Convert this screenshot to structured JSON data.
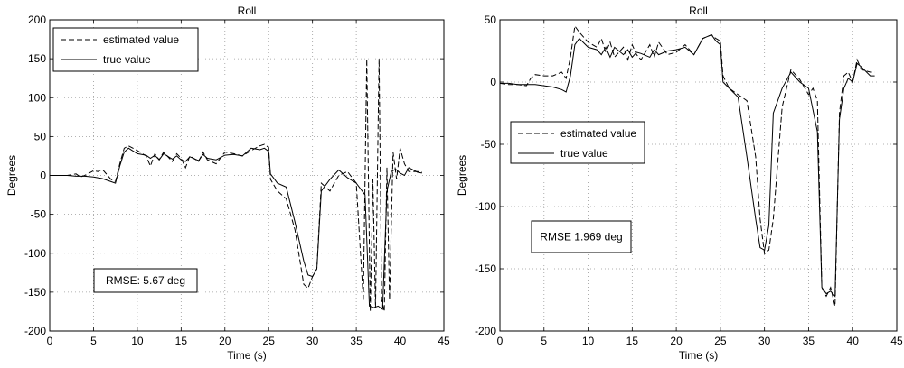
{
  "chart_data": [
    {
      "type": "line",
      "title": "Roll",
      "xlabel": "Time (s)",
      "ylabel": "Degrees",
      "xlim": [
        0,
        45
      ],
      "ylim": [
        -200,
        200
      ],
      "xticks": [
        0,
        5,
        10,
        15,
        20,
        25,
        30,
        35,
        40,
        45
      ],
      "yticks": [
        -200,
        -150,
        -100,
        -50,
        0,
        50,
        100,
        150,
        200
      ],
      "grid": true,
      "legend_position": "top-left",
      "annotation": "RMSE: 5.67 deg",
      "series": [
        {
          "name": "estimated value",
          "style": "dashed",
          "x": [
            0,
            1,
            2,
            3,
            3.5,
            4,
            5,
            5.5,
            6,
            7,
            7.5,
            8,
            8.5,
            9,
            10,
            11,
            11.5,
            12,
            12.5,
            13,
            14,
            14.5,
            15,
            15.5,
            16,
            17,
            17.5,
            18,
            19,
            20,
            21,
            22,
            23,
            24,
            24.5,
            25,
            25.2,
            26,
            27,
            28,
            29,
            29.5,
            30,
            30.5,
            31,
            32,
            33,
            34,
            35,
            35.8,
            36.2,
            36.6,
            36.9,
            37.2,
            37.6,
            37.9,
            38.2,
            38.5,
            38.8,
            39.2,
            39.6,
            40,
            40.5,
            41,
            42,
            42.5
          ],
          "y": [
            0,
            0,
            0,
            2,
            -2,
            0,
            6,
            5,
            8,
            -5,
            -8,
            15,
            35,
            38,
            32,
            25,
            12,
            28,
            20,
            30,
            18,
            28,
            22,
            10,
            25,
            18,
            30,
            20,
            15,
            30,
            28,
            25,
            32,
            38,
            40,
            36,
            -5,
            -20,
            -30,
            -70,
            -140,
            -145,
            -130,
            -120,
            -10,
            -20,
            0,
            5,
            -10,
            -160,
            150,
            -175,
            -5,
            -170,
            150,
            -160,
            -175,
            10,
            -160,
            30,
            -5,
            35,
            15,
            5,
            5,
            4
          ]
        },
        {
          "name": "true value",
          "style": "solid",
          "x": [
            0,
            1,
            2,
            3,
            4,
            5,
            6,
            7,
            7.5,
            8,
            8.5,
            9,
            10,
            11,
            11.5,
            12,
            12.5,
            13,
            14,
            14.5,
            15,
            15.5,
            16,
            17,
            17.5,
            18,
            19,
            20,
            21,
            22,
            23,
            24,
            24.5,
            25,
            25.2,
            26,
            27,
            28,
            29,
            29.5,
            30,
            30.5,
            31,
            32,
            33,
            34,
            35,
            36,
            36.5,
            37,
            37.5,
            38,
            38.5,
            39,
            39.5,
            40,
            40.5,
            41,
            42,
            42.5
          ],
          "y": [
            0,
            0,
            0,
            -1,
            -1,
            -2,
            -4,
            -8,
            -10,
            12,
            30,
            35,
            28,
            26,
            22,
            26,
            20,
            28,
            21,
            25,
            20,
            18,
            24,
            19,
            27,
            22,
            20,
            26,
            27,
            25,
            35,
            33,
            35,
            31,
            2,
            -10,
            -15,
            -60,
            -110,
            -128,
            -130,
            -120,
            -20,
            -5,
            7,
            -3,
            -10,
            -25,
            -168,
            -170,
            -168,
            -172,
            -20,
            5,
            8,
            3,
            0,
            10,
            4,
            3
          ]
        }
      ]
    },
    {
      "type": "line",
      "title": "Roll",
      "xlabel": "Time (s)",
      "ylabel": "Degrees",
      "xlim": [
        0,
        45
      ],
      "ylim": [
        -200,
        50
      ],
      "xticks": [
        0,
        5,
        10,
        15,
        20,
        25,
        30,
        35,
        40,
        45
      ],
      "yticks": [
        -200,
        -150,
        -100,
        -50,
        0,
        50
      ],
      "grid": true,
      "legend_position": "center-left",
      "annotation": "RMSE 1.969 deg",
      "series": [
        {
          "name": "estimated value",
          "style": "dashed",
          "x": [
            0,
            1,
            2,
            3,
            3.5,
            4,
            5,
            6,
            7,
            7.5,
            8,
            8.5,
            9,
            10,
            11,
            11.5,
            12,
            12.5,
            13,
            14,
            14.5,
            15,
            15.5,
            16,
            17,
            17.5,
            18,
            19,
            20,
            21,
            22,
            23,
            24,
            24.5,
            25,
            25.3,
            26,
            27,
            28,
            29,
            29.5,
            30,
            30.5,
            31,
            32,
            33,
            34,
            35,
            35.5,
            36,
            36.5,
            37,
            37.5,
            38,
            38.5,
            39,
            39.5,
            40,
            40.5,
            41,
            42,
            42.5
          ],
          "y": [
            -1,
            -2,
            -2,
            -3,
            3,
            6,
            5,
            5,
            8,
            3,
            20,
            45,
            40,
            32,
            28,
            35,
            24,
            32,
            20,
            28,
            18,
            30,
            22,
            18,
            30,
            20,
            32,
            22,
            24,
            30,
            22,
            35,
            38,
            35,
            33,
            5,
            -5,
            -10,
            -15,
            -60,
            -110,
            -138,
            -135,
            -110,
            -20,
            10,
            2,
            -10,
            -5,
            -15,
            -165,
            -172,
            -165,
            -180,
            -25,
            5,
            8,
            0,
            18,
            10,
            8,
            8
          ]
        },
        {
          "name": "true value",
          "style": "solid",
          "x": [
            0,
            1,
            2,
            3,
            4,
            5,
            6,
            7,
            7.5,
            8,
            8.5,
            9,
            10,
            11,
            11.5,
            12,
            12.5,
            13,
            14,
            14.5,
            15,
            15.5,
            16,
            17,
            17.5,
            18,
            19,
            20,
            21,
            22,
            23,
            24,
            24.5,
            25,
            25.3,
            26,
            27,
            28,
            29,
            29.5,
            30,
            30.5,
            31,
            32,
            33,
            34,
            35,
            36,
            36.5,
            37,
            37.5,
            38,
            38.5,
            39,
            39.5,
            40,
            40.5,
            41,
            42,
            42.5
          ],
          "y": [
            -1,
            -1,
            -2,
            -2,
            -2,
            -3,
            -4,
            -6,
            -8,
            5,
            30,
            35,
            28,
            26,
            22,
            28,
            20,
            28,
            22,
            26,
            20,
            24,
            23,
            20,
            26,
            22,
            25,
            26,
            28,
            22,
            35,
            38,
            33,
            30,
            0,
            -5,
            -12,
            -60,
            -110,
            -133,
            -135,
            -115,
            -25,
            -5,
            8,
            0,
            -5,
            -40,
            -165,
            -170,
            -168,
            -172,
            -30,
            -5,
            3,
            0,
            15,
            12,
            5,
            5
          ]
        }
      ]
    }
  ]
}
